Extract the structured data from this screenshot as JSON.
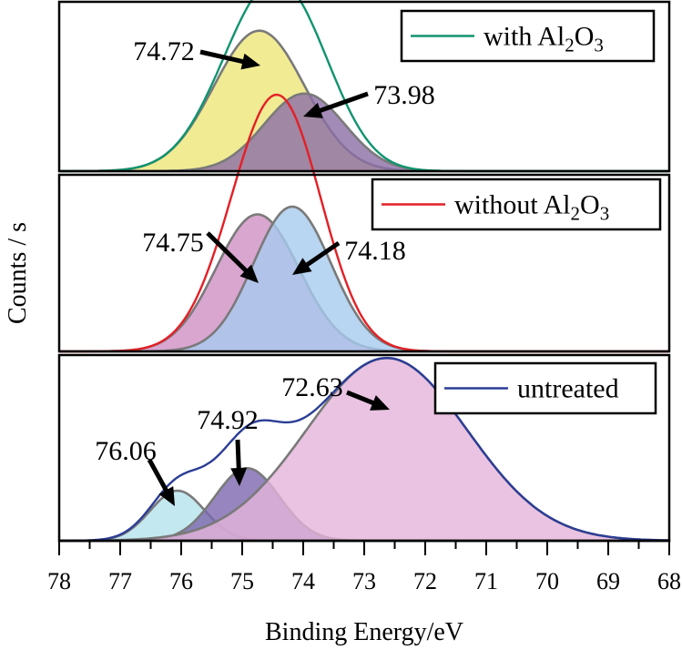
{
  "chart_data": {
    "type": "area",
    "title": "",
    "xlabel": "Binding Energy/eV",
    "ylabel": "Counts / s",
    "xlim": [
      78,
      68
    ],
    "x_reversed": true,
    "xticks": [
      "78",
      "77",
      "76",
      "75",
      "74",
      "73",
      "72",
      "71",
      "70",
      "69",
      "68"
    ],
    "grid": false,
    "panels": [
      {
        "name": "with-al2o3",
        "legend": "with Al2O3",
        "legend_parts": [
          "with Al",
          "2",
          "O",
          "3"
        ],
        "legend_position": "top-right",
        "envelope_color": "#10946f",
        "peaks": [
          {
            "label": "74.72",
            "center": 74.72,
            "height": 0.76,
            "fwhm": 1.75,
            "fill": "#ede679"
          },
          {
            "label": "73.98",
            "center": 73.98,
            "height": 0.42,
            "fwhm": 1.55,
            "fill": "#8c6ea6"
          }
        ]
      },
      {
        "name": "without-al2o3",
        "legend": "without Al2O3",
        "legend_parts": [
          "without Al",
          "2",
          "O",
          "3"
        ],
        "legend_position": "top-right",
        "envelope_color": "#e41f26",
        "peaks": [
          {
            "label": "74.75",
            "center": 74.75,
            "height": 0.53,
            "fwhm": 1.6,
            "fill": "#cf90c4"
          },
          {
            "label": "74.18",
            "center": 74.18,
            "height": 0.56,
            "fwhm": 1.5,
            "fill": "#a6cbed"
          }
        ]
      },
      {
        "name": "untreated",
        "legend": "untreated",
        "legend_parts": [
          "untreated"
        ],
        "legend_position": "top-right",
        "envelope_color": "#2b3d96",
        "peaks": [
          {
            "label": "76.06",
            "center": 76.06,
            "height": 0.2,
            "fwhm": 1.05,
            "fill": "#b4e2ec"
          },
          {
            "label": "74.92",
            "center": 74.92,
            "height": 0.29,
            "fwhm": 1.25,
            "fill": "#7c67ae"
          },
          {
            "label": "72.63",
            "center": 72.63,
            "height": 0.73,
            "fwhm": 3.1,
            "fill": "#e3b4d9"
          }
        ]
      }
    ]
  }
}
